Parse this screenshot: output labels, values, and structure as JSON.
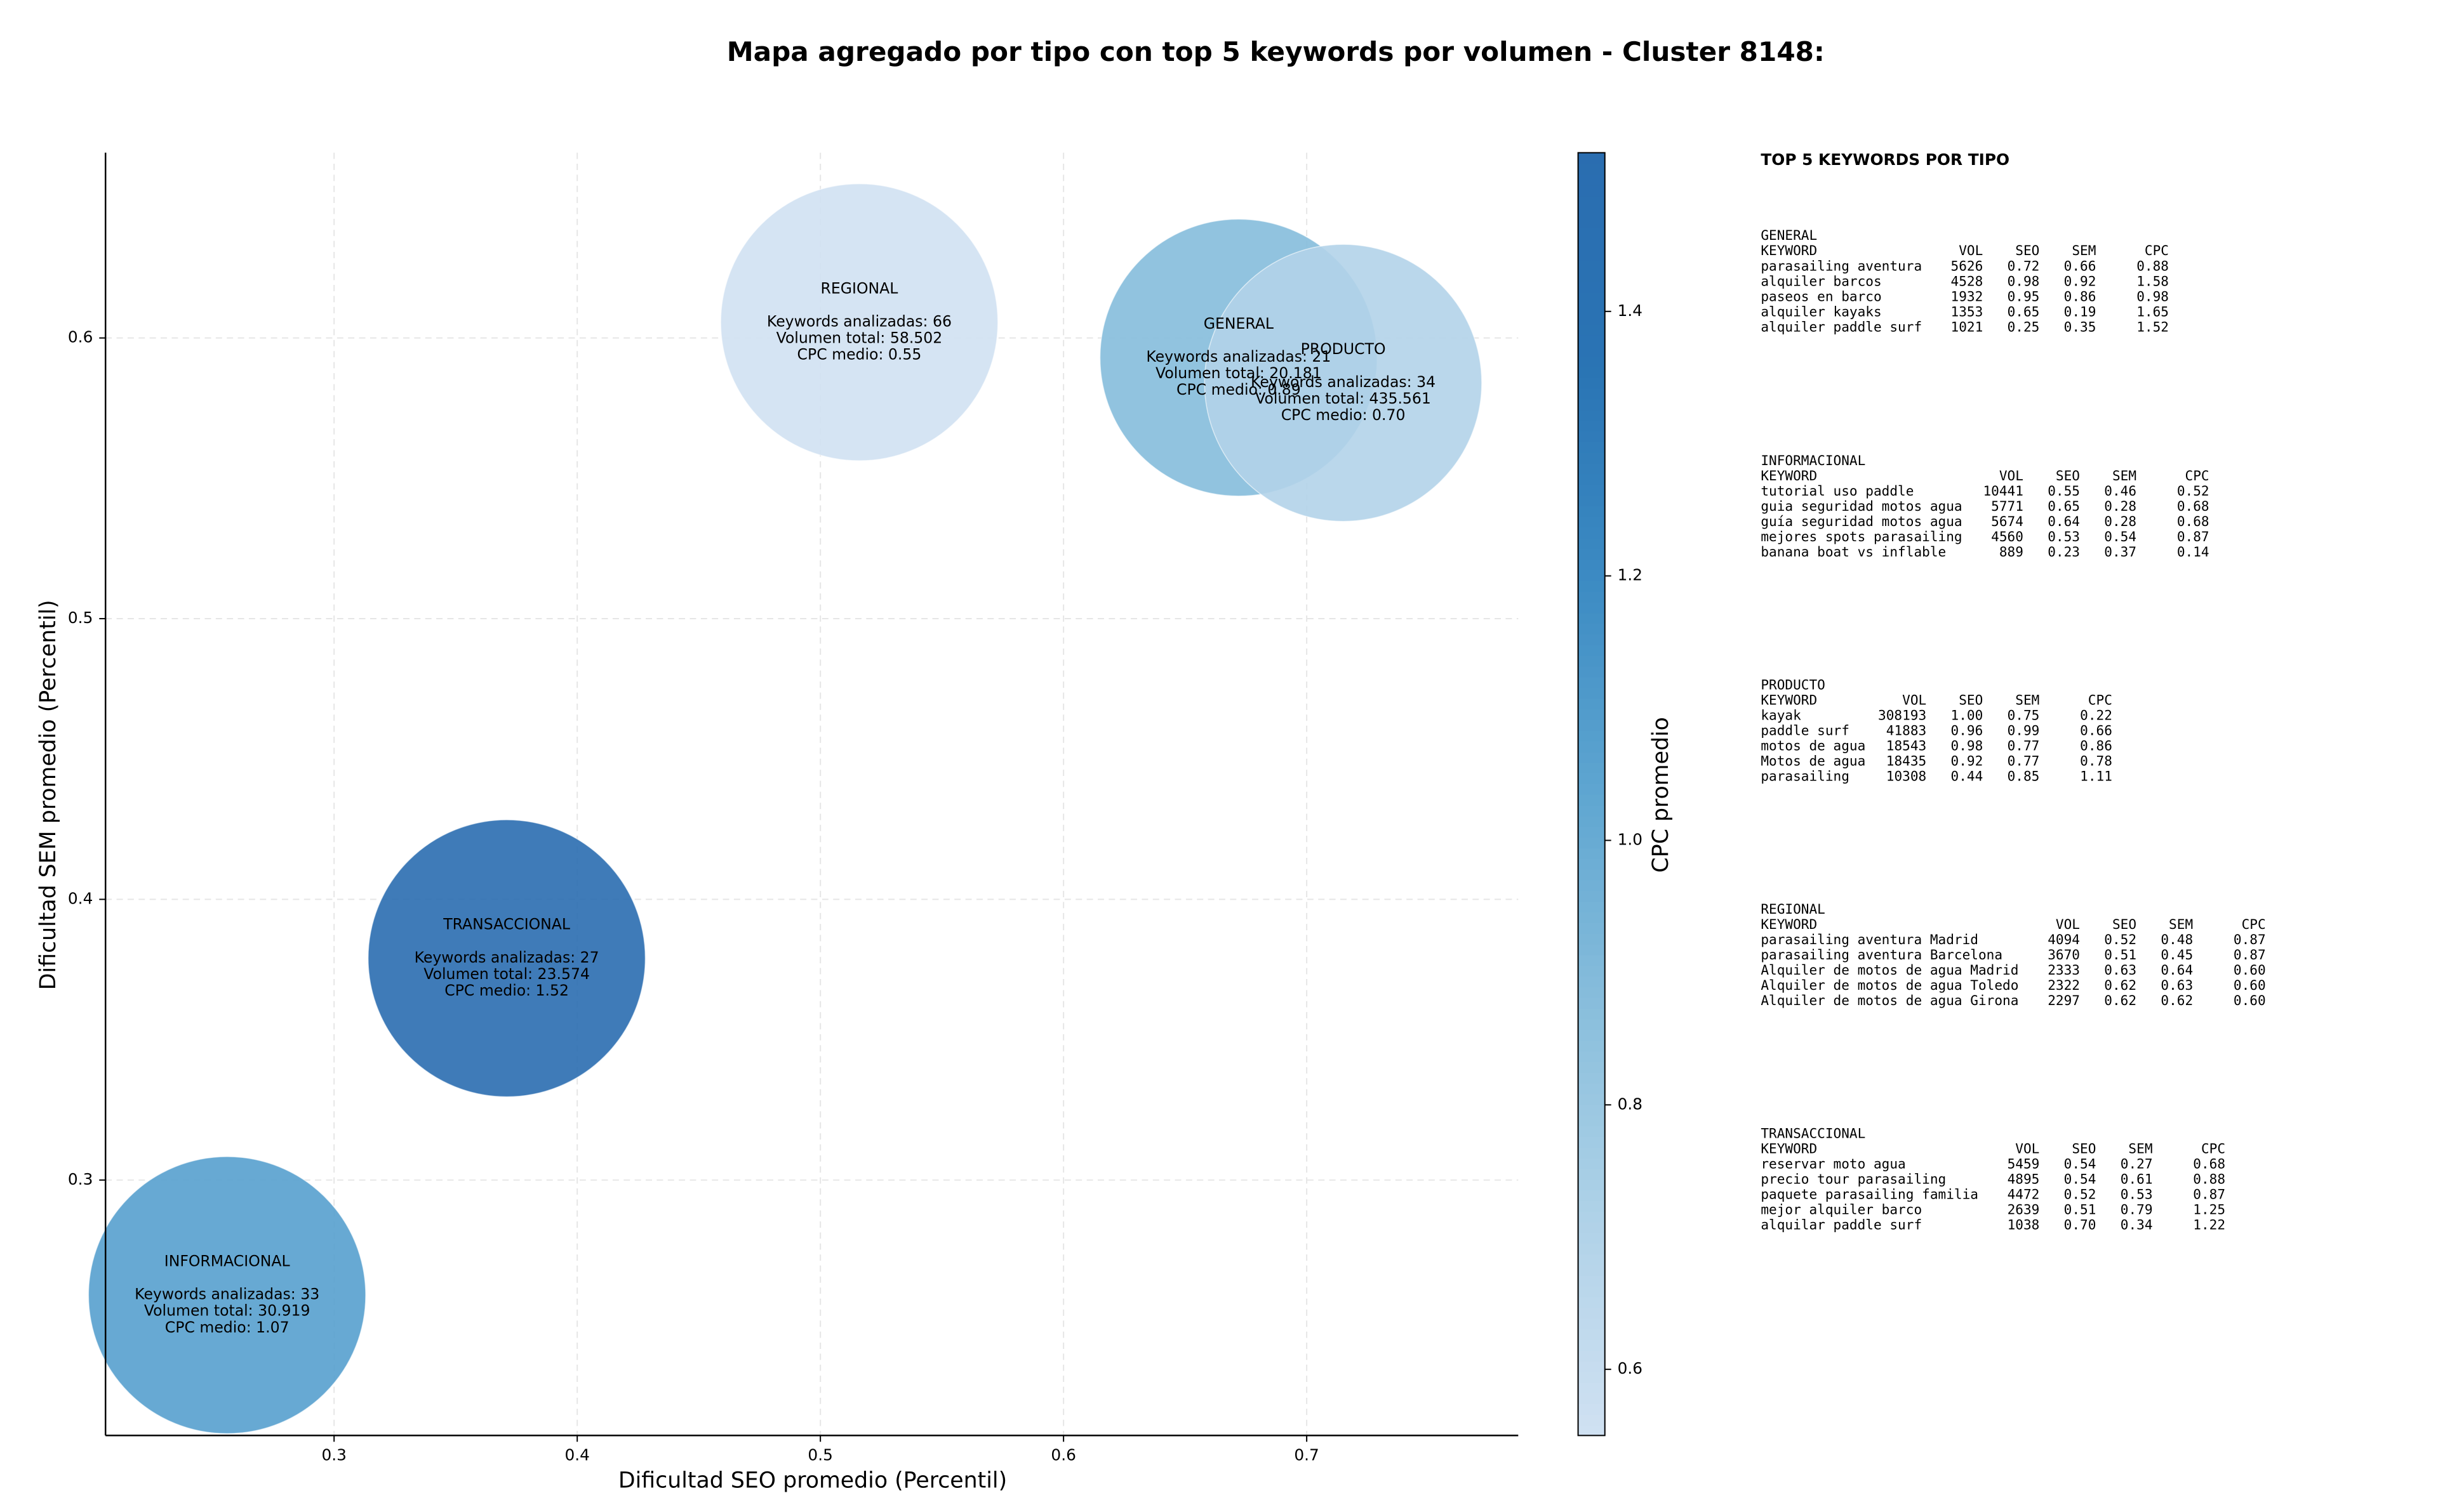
{
  "chart_data": {
    "type": "scatter",
    "title": "Mapa agregado por tipo con top 5 keywords por volumen - Cluster 8148:",
    "xlabel": "Dificultad SEO promedio (Percentil)",
    "ylabel": "Dificultad SEM promedio (Percentil)",
    "categories": [
      "GENERAL",
      "INFORMACIONAL",
      "PRODUCTO",
      "REGIONAL",
      "TRANSACCIONAL"
    ],
    "x": [
      0.672,
      0.256,
      0.715,
      0.516,
      0.371
    ],
    "y": [
      0.593,
      0.259,
      0.584,
      0.6056,
      0.379
    ],
    "cpc": [
      0.89,
      1.07,
      0.7,
      0.55,
      1.52
    ],
    "annotations": [
      [
        "Keywords analizadas: 21",
        "Volumen total: 20.181",
        "CPC medio: 0.89"
      ],
      [
        "Keywords analizadas: 33",
        "Volumen total: 30.919",
        "CPC medio: 1.07"
      ],
      [
        "Keywords analizadas: 34",
        "Volumen total: 435.561",
        "CPC medio: 0.70"
      ],
      [
        "Keywords analizadas: 66",
        "Volumen total: 58.502",
        "CPC medio: 0.55"
      ],
      [
        "Keywords analizadas: 27",
        "Volumen total: 23.574",
        "CPC medio: 1.52"
      ]
    ],
    "xlim": [
      0.206,
      0.787
    ],
    "ylim": [
      0.209,
      0.666
    ],
    "xticks": [
      0.3,
      0.4,
      0.5,
      0.6,
      0.7
    ],
    "yticks": [
      0.3,
      0.4,
      0.5,
      0.6
    ],
    "grid": true,
    "colorbar": {
      "label": "CPC promedio",
      "lim": [
        0.55,
        1.52
      ],
      "ticks": [
        0.6,
        0.8,
        {
          "value": 1,
          "label": "1.0"
        },
        1.2,
        1.4
      ],
      "colormap": [
        "#d0e1f2",
        "#b0d2e8",
        "#89bedc",
        "#5fa6d1",
        "#3c8bc3",
        "#2a74b4",
        "#2a6db0"
      ]
    }
  },
  "panel": {
    "title": "TOP 5 KEYWORDS POR TIPO",
    "columns": [
      "KEYWORD",
      "VOL",
      "SEO",
      "SEM",
      "CPC"
    ],
    "sections": [
      {
        "name": "GENERAL",
        "rows": [
          [
            "parasailing aventura",
            "5626",
            "0.72",
            "0.66",
            "0.88"
          ],
          [
            "alquiler barcos",
            "4528",
            "0.98",
            "0.92",
            "1.58"
          ],
          [
            "paseos en barco",
            "1932",
            "0.95",
            "0.86",
            "0.98"
          ],
          [
            "alquiler kayaks",
            "1353",
            "0.65",
            "0.19",
            "1.65"
          ],
          [
            "alquiler paddle surf",
            "1021",
            "0.25",
            "0.35",
            "1.52"
          ]
        ]
      },
      {
        "name": "INFORMACIONAL",
        "rows": [
          [
            "tutorial uso paddle",
            "10441",
            "0.55",
            "0.46",
            "0.52"
          ],
          [
            "guia seguridad motos agua",
            "5771",
            "0.65",
            "0.28",
            "0.68"
          ],
          [
            "guía seguridad motos agua",
            "5674",
            "0.64",
            "0.28",
            "0.68"
          ],
          [
            "mejores spots parasailing",
            "4560",
            "0.53",
            "0.54",
            "0.87"
          ],
          [
            "banana boat vs inflable",
            "889",
            "0.23",
            "0.37",
            "0.14"
          ]
        ]
      },
      {
        "name": "PRODUCTO",
        "rows": [
          [
            "kayak",
            "308193",
            "1.00",
            "0.75",
            "0.22"
          ],
          [
            "paddle surf",
            "41883",
            "0.96",
            "0.99",
            "0.66"
          ],
          [
            "motos de agua",
            "18543",
            "0.98",
            "0.77",
            "0.86"
          ],
          [
            "Motos de agua",
            "18435",
            "0.92",
            "0.77",
            "0.78"
          ],
          [
            "parasailing",
            "10308",
            "0.44",
            "0.85",
            "1.11"
          ]
        ]
      },
      {
        "name": "REGIONAL",
        "rows": [
          [
            "parasailing aventura Madrid",
            "4094",
            "0.52",
            "0.48",
            "0.87"
          ],
          [
            "parasailing aventura Barcelona",
            "3670",
            "0.51",
            "0.45",
            "0.87"
          ],
          [
            "Alquiler de motos de agua Madrid",
            "2333",
            "0.63",
            "0.64",
            "0.60"
          ],
          [
            "Alquiler de motos de agua Toledo",
            "2322",
            "0.62",
            "0.63",
            "0.60"
          ],
          [
            "Alquiler de motos de agua Girona",
            "2297",
            "0.62",
            "0.62",
            "0.60"
          ]
        ]
      },
      {
        "name": "TRANSACCIONAL",
        "rows": [
          [
            "reservar moto agua",
            "5459",
            "0.54",
            "0.27",
            "0.68"
          ],
          [
            "precio tour parasailing",
            "4895",
            "0.54",
            "0.61",
            "0.88"
          ],
          [
            "paquete parasailing familia",
            "4472",
            "0.52",
            "0.53",
            "0.87"
          ],
          [
            "mejor alquiler barco",
            "2639",
            "0.51",
            "0.79",
            "1.25"
          ],
          [
            "alquilar paddle surf",
            "1038",
            "0.70",
            "0.34",
            "1.22"
          ]
        ]
      }
    ]
  }
}
